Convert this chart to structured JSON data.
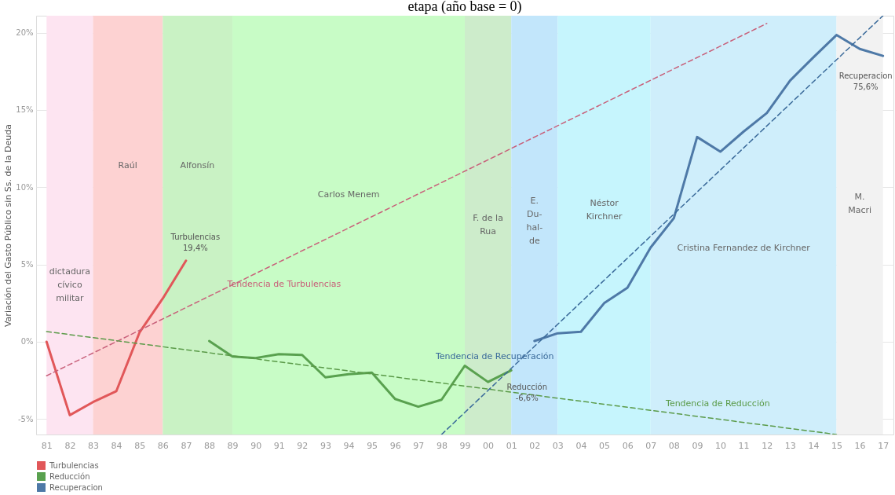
{
  "chart_data": {
    "type": "line",
    "title": "etapa (año base = 0)",
    "ylabel": "Variación del Gasto Público sin Ss. de la Deuda",
    "categories": [
      "81",
      "82",
      "83",
      "84",
      "85",
      "86",
      "87",
      "88",
      "89",
      "90",
      "91",
      "92",
      "93",
      "94",
      "95",
      "96",
      "97",
      "98",
      "99",
      "00",
      "01",
      "02",
      "03",
      "04",
      "05",
      "06",
      "07",
      "08",
      "09",
      "10",
      "11",
      "12",
      "13",
      "14",
      "15",
      "16",
      "17"
    ],
    "ylim": [
      -6,
      21.1
    ],
    "yticks": [
      {
        "value": -5,
        "label": "-5%"
      },
      {
        "value": 0,
        "label": "0%"
      },
      {
        "value": 5,
        "label": "5%"
      },
      {
        "value": 10,
        "label": "10%"
      },
      {
        "value": 15,
        "label": "15%"
      },
      {
        "value": 20,
        "label": "20%"
      }
    ],
    "grid": "y",
    "legend": "bottom left",
    "line_style": "solid",
    "marker": "none",
    "series": [
      {
        "name": "Turbulencias",
        "color": "#e15759",
        "values": [
          0,
          -4.75,
          -3.9,
          -3.2,
          0.6,
          2.8,
          5.25,
          null,
          null,
          null,
          null,
          null,
          null,
          null,
          null,
          null,
          null,
          null,
          null,
          null,
          null,
          null,
          null,
          null,
          null,
          null,
          null,
          null,
          null,
          null,
          null,
          null,
          null,
          null,
          null,
          null,
          null
        ]
      },
      {
        "name": "Reducción",
        "color": "#59a14f",
        "values": [
          null,
          null,
          null,
          null,
          null,
          null,
          null,
          0.05,
          -0.95,
          -1.05,
          -0.8,
          -0.85,
          -2.3,
          -2.1,
          -2.0,
          -3.7,
          -4.2,
          -3.75,
          -1.55,
          -2.6,
          -1.85,
          null,
          null,
          null,
          null,
          null,
          null,
          null,
          null,
          null,
          null,
          null,
          null,
          null,
          null,
          null,
          null
        ]
      },
      {
        "name": "Recuperacion",
        "color": "#4e79a7",
        "values": [
          null,
          null,
          null,
          null,
          null,
          null,
          null,
          null,
          null,
          null,
          null,
          null,
          null,
          null,
          null,
          null,
          null,
          null,
          null,
          null,
          null,
          0.05,
          0.55,
          0.65,
          2.5,
          3.5,
          6.1,
          8.0,
          13.25,
          12.3,
          13.6,
          14.8,
          16.9,
          18.4,
          19.85,
          18.95,
          18.5
        ]
      },
      {
        "name": "Tendencia de Turbulencias",
        "type": "line",
        "line_style": "dashed",
        "color": "#c8607a",
        "x": [
          "81",
          "12"
        ],
        "values": [
          -2.2,
          20.6
        ]
      },
      {
        "name": "Tendencia de Reducción",
        "type": "line",
        "line_style": "dashed",
        "color": "#5a9a48",
        "x": [
          "81",
          "15"
        ],
        "values": [
          0.66,
          -6.0
        ]
      },
      {
        "name": "Tendencia de Recuperación",
        "type": "line",
        "line_style": "dashed",
        "color": "#3a6a9a",
        "x": [
          "98",
          "17"
        ],
        "values": [
          -6.0,
          21.1
        ]
      }
    ],
    "bands": [
      {
        "axis": "x",
        "from": "81",
        "to": "83",
        "label": "dictadura\ncívico\nmilitar",
        "color": "#fde4f1"
      },
      {
        "axis": "x",
        "from": "83",
        "to": "86",
        "label": "Raúl",
        "color": "#fdd2d2"
      },
      {
        "axis": "x",
        "from": "86",
        "to": "89",
        "label": "Alfonsín",
        "color": "#c9f2c4"
      },
      {
        "axis": "x",
        "from": "89",
        "to": "99",
        "label": "Carlos Menem",
        "color": "#c8fcc6"
      },
      {
        "axis": "x",
        "from": "99",
        "to": "01",
        "label": "F. de la\nRua",
        "color": "#cdeccb"
      },
      {
        "axis": "x",
        "from": "01",
        "to": "03",
        "label": "E.\nDu-\nhal-\nde",
        "color": "#c2e6fb"
      },
      {
        "axis": "x",
        "from": "03",
        "to": "07",
        "label": "Néstor\nKirchner",
        "color": "#c6f5fd"
      },
      {
        "axis": "x",
        "from": "07",
        "to": "15",
        "label": "Cristina Fernandez de Kirchner",
        "color": "#cfeefb"
      },
      {
        "axis": "x",
        "from": "15",
        "to": "17",
        "label": "M.\nMacri",
        "color": "#f2f2f2"
      }
    ],
    "annotations": [
      {
        "text": "Turbulencias\n19,4%",
        "x": "87",
        "y": 5.25
      },
      {
        "text": "Reducción\n-6,6%",
        "x": "01",
        "y": -1.85
      },
      {
        "text": "Recuperacion\n75,6%",
        "x": "17",
        "y": 18.5
      }
    ]
  }
}
